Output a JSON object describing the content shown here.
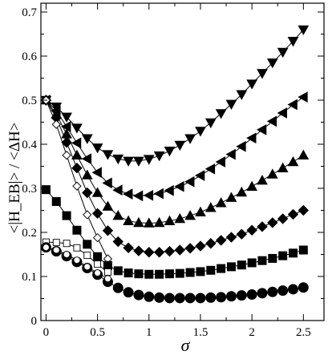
{
  "chart_data": {
    "type": "line",
    "xlabel": "σ",
    "ylabel": "<|H_EB|> / <ΔH>",
    "xlim": [
      -0.05,
      2.7
    ],
    "ylim": [
      0,
      0.72
    ],
    "xticks": [
      0,
      0.5,
      1,
      1.5,
      2,
      2.5
    ],
    "xtick_labels": [
      "0",
      "0.5",
      "1",
      "1.5",
      "2",
      "2.5"
    ],
    "yticks": [
      0,
      0.1,
      0.2,
      0.3,
      0.4,
      0.5,
      0.6,
      0.7
    ],
    "ytick_labels": [
      "0",
      "0.1",
      "0.2",
      "0.3",
      "0.4",
      "0.5",
      "0.6",
      "0.7"
    ],
    "grid": false,
    "legend": "none",
    "series": [
      {
        "marker": "triangle-down",
        "filled": true,
        "color": "#000000",
        "x": [
          0,
          0.1,
          0.2,
          0.3,
          0.4,
          0.5,
          0.6,
          0.7,
          0.8,
          0.9,
          1.0,
          1.1,
          1.2,
          1.3,
          1.4,
          1.5,
          1.6,
          1.7,
          1.8,
          1.9,
          2.0,
          2.1,
          2.2,
          2.3,
          2.4,
          2.5
        ],
        "y": [
          0.5,
          0.485,
          0.462,
          0.437,
          0.413,
          0.392,
          0.377,
          0.367,
          0.362,
          0.362,
          0.366,
          0.374,
          0.385,
          0.398,
          0.413,
          0.43,
          0.449,
          0.47,
          0.491,
          0.513,
          0.537,
          0.561,
          0.585,
          0.609,
          0.634,
          0.66
        ]
      },
      {
        "marker": "triangle-left",
        "filled": true,
        "color": "#000000",
        "x": [
          0,
          0.1,
          0.2,
          0.3,
          0.4,
          0.5,
          0.6,
          0.7,
          0.8,
          0.9,
          1.0,
          1.1,
          1.2,
          1.3,
          1.4,
          1.5,
          1.6,
          1.7,
          1.8,
          1.9,
          2.0,
          2.1,
          2.2,
          2.3,
          2.4,
          2.5
        ],
        "y": [
          0.5,
          0.476,
          0.44,
          0.403,
          0.367,
          0.336,
          0.312,
          0.296,
          0.287,
          0.283,
          0.284,
          0.288,
          0.295,
          0.304,
          0.315,
          0.329,
          0.344,
          0.36,
          0.377,
          0.395,
          0.414,
          0.433,
          0.452,
          0.471,
          0.49,
          0.507
        ]
      },
      {
        "marker": "triangle-up",
        "filled": true,
        "color": "#000000",
        "x": [
          0,
          0.1,
          0.2,
          0.3,
          0.4,
          0.5,
          0.6,
          0.7,
          0.8,
          0.9,
          1.0,
          1.1,
          1.2,
          1.3,
          1.4,
          1.5,
          1.6,
          1.7,
          1.8,
          1.9,
          2.0,
          2.1,
          2.2,
          2.3,
          2.4,
          2.5
        ],
        "y": [
          0.5,
          0.468,
          0.423,
          0.375,
          0.33,
          0.29,
          0.259,
          0.238,
          0.226,
          0.222,
          0.221,
          0.222,
          0.226,
          0.231,
          0.238,
          0.246,
          0.256,
          0.267,
          0.279,
          0.291,
          0.304,
          0.318,
          0.332,
          0.346,
          0.36,
          0.375
        ]
      },
      {
        "marker": "diamond",
        "filled": true,
        "color": "#000000",
        "x": [
          0,
          0.1,
          0.2,
          0.3,
          0.4,
          0.5,
          0.6,
          0.7,
          0.8,
          0.9,
          1.0,
          1.1,
          1.2,
          1.3,
          1.4,
          1.5,
          1.6,
          1.7,
          1.8,
          1.9,
          2.0,
          2.1,
          2.2,
          2.3,
          2.4,
          2.5
        ],
        "y": [
          0.5,
          0.46,
          0.404,
          0.346,
          0.29,
          0.243,
          0.204,
          0.179,
          0.165,
          0.158,
          0.155,
          0.155,
          0.157,
          0.16,
          0.164,
          0.169,
          0.175,
          0.182,
          0.189,
          0.196,
          0.205,
          0.213,
          0.222,
          0.231,
          0.241,
          0.25
        ]
      },
      {
        "marker": "diamond",
        "filled": false,
        "color": "#000000",
        "x": [
          0,
          0.1,
          0.2,
          0.3,
          0.4,
          0.5,
          0.6
        ],
        "y": [
          0.5,
          0.445,
          0.375,
          0.305,
          0.24,
          0.188,
          0.14
        ]
      },
      {
        "marker": "square",
        "filled": true,
        "color": "#000000",
        "x": [
          0,
          0.1,
          0.2,
          0.3,
          0.4,
          0.5,
          0.6,
          0.7,
          0.8,
          0.9,
          1.0,
          1.1,
          1.2,
          1.3,
          1.4,
          1.5,
          1.6,
          1.7,
          1.8,
          1.9,
          2.0,
          2.1,
          2.2,
          2.3,
          2.4,
          2.5
        ],
        "y": [
          0.297,
          0.27,
          0.238,
          0.205,
          0.173,
          0.145,
          0.125,
          0.113,
          0.108,
          0.106,
          0.105,
          0.105,
          0.106,
          0.107,
          0.109,
          0.111,
          0.114,
          0.118,
          0.122,
          0.126,
          0.131,
          0.136,
          0.141,
          0.147,
          0.153,
          0.16
        ]
      },
      {
        "marker": "square",
        "filled": false,
        "color": "#000000",
        "x": [
          0,
          0.1,
          0.2,
          0.3,
          0.4,
          0.5,
          0.6
        ],
        "y": [
          0.178,
          0.177,
          0.175,
          0.165,
          0.148,
          0.128,
          0.11
        ]
      },
      {
        "marker": "circle",
        "filled": true,
        "color": "#000000",
        "x": [
          0,
          0.1,
          0.2,
          0.3,
          0.4,
          0.5,
          0.6,
          0.7,
          0.8,
          0.9,
          1.0,
          1.1,
          1.2,
          1.3,
          1.4,
          1.5,
          1.6,
          1.7,
          1.8,
          1.9,
          2.0,
          2.1,
          2.2,
          2.3,
          2.4,
          2.5
        ],
        "y": [
          0.166,
          0.157,
          0.146,
          0.133,
          0.119,
          0.104,
          0.088,
          0.074,
          0.064,
          0.058,
          0.054,
          0.052,
          0.051,
          0.051,
          0.051,
          0.051,
          0.052,
          0.053,
          0.055,
          0.057,
          0.059,
          0.062,
          0.065,
          0.068,
          0.071,
          0.075
        ]
      },
      {
        "marker": "circle",
        "filled": false,
        "color": "#000000",
        "x": [
          0,
          0.1,
          0.2,
          0.3,
          0.4,
          0.5,
          0.6
        ],
        "y": [
          0.166,
          0.16,
          0.15,
          0.137,
          0.122,
          0.108,
          0.095
        ]
      }
    ]
  }
}
